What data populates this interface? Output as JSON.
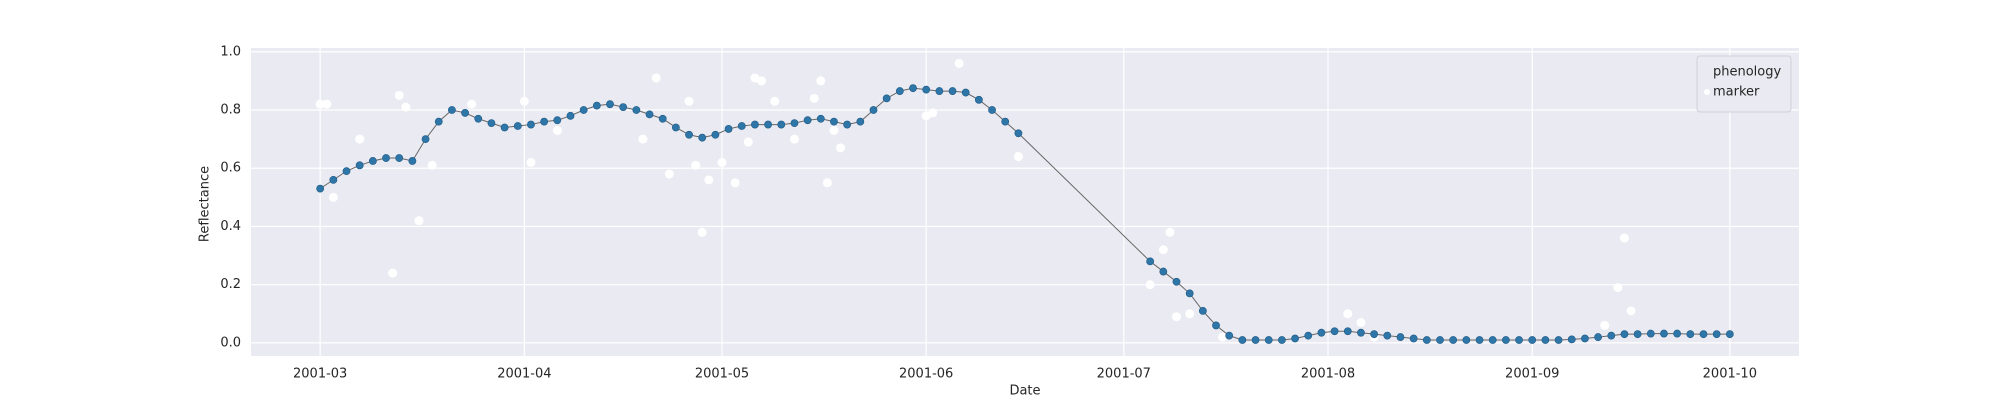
{
  "chart_data": {
    "type": "line",
    "xlabel": "Date",
    "ylabel": "Reflectance",
    "xlim": [
      49.5,
      284.5
    ],
    "xticks": [
      {
        "value": 60,
        "label": "2001-03"
      },
      {
        "value": 91,
        "label": "2001-04"
      },
      {
        "value": 121,
        "label": "2001-05"
      },
      {
        "value": 152,
        "label": "2001-06"
      },
      {
        "value": 182,
        "label": "2001-07"
      },
      {
        "value": 213,
        "label": "2001-08"
      },
      {
        "value": 244,
        "label": "2001-09"
      },
      {
        "value": 274,
        "label": "2001-10"
      }
    ],
    "ylim": [
      -0.045,
      1.013
    ],
    "yticks": [
      {
        "value": 0,
        "label": "0.0"
      },
      {
        "value": 0.2,
        "label": "0.2"
      },
      {
        "value": 0.4,
        "label": "0.4"
      },
      {
        "value": 0.6,
        "label": "0.6"
      },
      {
        "value": 0.8,
        "label": "0.8"
      },
      {
        "value": 1,
        "label": "1.0"
      }
    ],
    "grid": true,
    "background": "#eaeaf2",
    "legend": "upper right",
    "series": [
      {
        "name": "phenology",
        "kind": "line",
        "color": "#2e75a8",
        "line_color": "#666666",
        "x": [
          60,
          62,
          64,
          66,
          68,
          70,
          72,
          74,
          76,
          78,
          80,
          82,
          84,
          86,
          88,
          90,
          92,
          94,
          96,
          98,
          100,
          102,
          104,
          106,
          108,
          110,
          112,
          114,
          116,
          118,
          120,
          122,
          124,
          126,
          128,
          130,
          132,
          134,
          136,
          138,
          140,
          142,
          144,
          146,
          148,
          150,
          152,
          154,
          156,
          158,
          160,
          162,
          164,
          166,
          186,
          188,
          190,
          192,
          194,
          196,
          198,
          200,
          202,
          204,
          206,
          208,
          210,
          212,
          214,
          216,
          218,
          220,
          222,
          224,
          226,
          228,
          230,
          232,
          234,
          236,
          238,
          240,
          242,
          244,
          246,
          248,
          250,
          252,
          254,
          256,
          258,
          260,
          262,
          264,
          266,
          268,
          270,
          272,
          274
        ],
        "values": [
          0.53,
          0.56,
          0.59,
          0.61,
          0.625,
          0.635,
          0.635,
          0.625,
          0.7,
          0.76,
          0.8,
          0.79,
          0.77,
          0.755,
          0.74,
          0.745,
          0.75,
          0.76,
          0.765,
          0.78,
          0.8,
          0.815,
          0.82,
          0.81,
          0.8,
          0.785,
          0.77,
          0.74,
          0.715,
          0.705,
          0.715,
          0.735,
          0.745,
          0.75,
          0.75,
          0.75,
          0.755,
          0.765,
          0.77,
          0.76,
          0.75,
          0.76,
          0.8,
          0.84,
          0.865,
          0.875,
          0.87,
          0.865,
          0.865,
          0.86,
          0.835,
          0.8,
          0.76,
          0.72,
          0.28,
          0.245,
          0.21,
          0.17,
          0.11,
          0.06,
          0.025,
          0.01,
          0.01,
          0.01,
          0.01,
          0.015,
          0.025,
          0.035,
          0.04,
          0.04,
          0.035,
          0.03,
          0.025,
          0.02,
          0.015,
          0.01,
          0.01,
          0.01,
          0.01,
          0.01,
          0.01,
          0.01,
          0.01,
          0.01,
          0.01,
          0.01,
          0.012,
          0.015,
          0.02,
          0.025,
          0.03,
          0.03,
          0.032,
          0.032,
          0.032,
          0.03,
          0.03,
          0.03,
          0.03
        ]
      },
      {
        "name": "marker",
        "kind": "scatter",
        "color": "#ffffff",
        "x": [
          60,
          61,
          62,
          66,
          71,
          72,
          73,
          75,
          77,
          83,
          91,
          92,
          96,
          109,
          111,
          113,
          116,
          117,
          118,
          119,
          121,
          123,
          125,
          126,
          127,
          129,
          132,
          135,
          136,
          137,
          138,
          139,
          152,
          153,
          157,
          166,
          186,
          188,
          189,
          190,
          192,
          197,
          216,
          218,
          220,
          255,
          257,
          258,
          259
        ],
        "values": [
          0.82,
          0.82,
          0.5,
          0.7,
          0.24,
          0.85,
          0.81,
          0.42,
          0.61,
          0.82,
          0.83,
          0.62,
          0.73,
          0.7,
          0.91,
          0.58,
          0.83,
          0.61,
          0.38,
          0.56,
          0.62,
          0.55,
          0.69,
          0.91,
          0.9,
          0.83,
          0.7,
          0.84,
          0.9,
          0.55,
          0.73,
          0.67,
          0.78,
          0.79,
          0.96,
          0.64,
          0.2,
          0.32,
          0.38,
          0.09,
          0.1,
          0.02,
          0.1,
          0.07,
          0.02,
          0.06,
          0.19,
          0.36,
          0.11
        ]
      }
    ]
  }
}
